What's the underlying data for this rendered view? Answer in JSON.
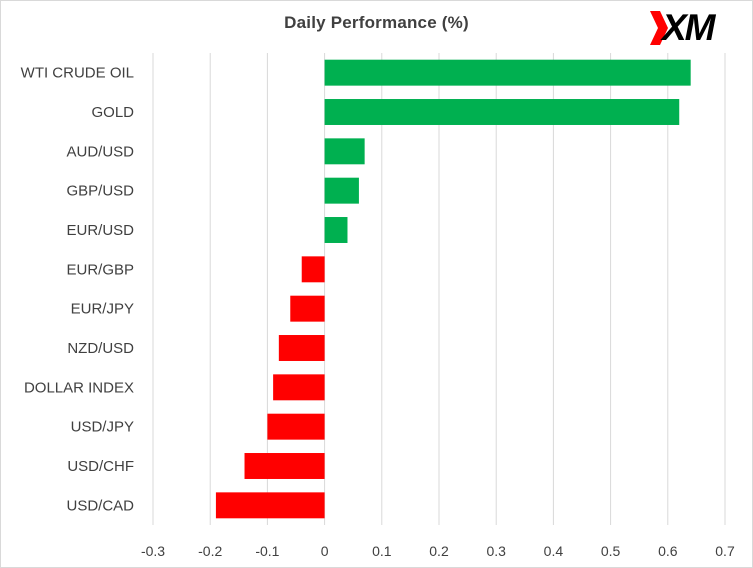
{
  "chart_data": {
    "type": "bar",
    "orientation": "horizontal",
    "title": "Daily Performance  (%)",
    "categories": [
      "WTI CRUDE OIL",
      "GOLD",
      "AUD/USD",
      "GBP/USD",
      "EUR/USD",
      "EUR/GBP",
      "EUR/JPY",
      "NZD/USD",
      "DOLLAR INDEX",
      "USD/JPY",
      "USD/CHF",
      "USD/CAD"
    ],
    "values": [
      0.64,
      0.62,
      0.07,
      0.06,
      0.04,
      -0.04,
      -0.06,
      -0.08,
      -0.09,
      -0.1,
      -0.14,
      -0.19
    ],
    "xlim": [
      -0.3,
      0.7
    ],
    "xticks": [
      "-0.3",
      "-0.2",
      "-0.1",
      "0",
      "0.1",
      "0.2",
      "0.3",
      "0.4",
      "0.5",
      "0.6",
      "0.7"
    ],
    "grid": "vertical",
    "colors": {
      "positive": "#00b050",
      "negative": "#ff0000",
      "grid": "#d9d9d9"
    }
  },
  "logo": {
    "text": "XM",
    "accent_color": "#ff0000"
  }
}
